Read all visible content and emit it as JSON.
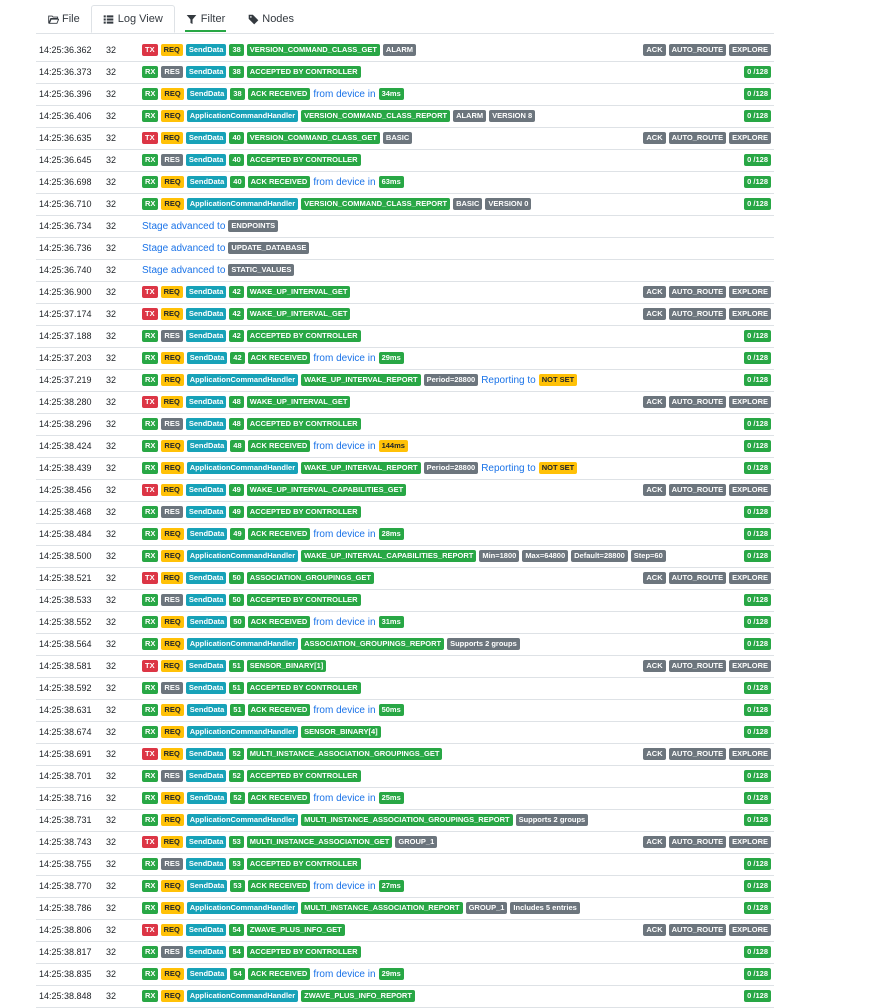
{
  "tabs": [
    {
      "label": "File",
      "icon": "folder-open-icon"
    },
    {
      "label": "Log View",
      "icon": "list-icon"
    },
    {
      "label": "Filter",
      "icon": "filter-icon"
    },
    {
      "label": "Nodes",
      "icon": "tags-icon"
    }
  ],
  "colors": {
    "tx": "#dc3545",
    "rx": "#28a745",
    "req": "#ffc107",
    "res": "#6c757d",
    "func": "#17a2b8",
    "cmd": "#28a745",
    "arg": "#6c757d",
    "link": "#1a73e8"
  },
  "log": [
    {
      "time": "14:25:36.362",
      "node": "32",
      "dir": "TX",
      "type": "REQ",
      "func": "SendData",
      "cb": "38",
      "cmd": "VERSION_COMMAND_CLASS_GET",
      "args": [
        "ALARM"
      ],
      "flags": [
        "ACK",
        "AUTO_ROUTE",
        "EXPLORE"
      ]
    },
    {
      "time": "14:25:36.373",
      "node": "32",
      "dir": "RX",
      "type": "RES",
      "func": "SendData",
      "cb": "38",
      "cmd": "ACCEPTED BY CONTROLLER",
      "count": "0 /128"
    },
    {
      "time": "14:25:36.396",
      "node": "32",
      "dir": "RX",
      "type": "REQ",
      "func": "SendData",
      "cb": "38",
      "cmd": "ACK RECEIVED",
      "from": "from device in",
      "ms": "34ms",
      "count": "0 /128"
    },
    {
      "time": "14:25:36.406",
      "node": "32",
      "dir": "RX",
      "type": "REQ",
      "func": "ApplicationCommandHandler",
      "cmd": "VERSION_COMMAND_CLASS_REPORT",
      "args": [
        "ALARM",
        "VERSION 8"
      ],
      "count": "0 /128"
    },
    {
      "time": "14:25:36.635",
      "node": "32",
      "dir": "TX",
      "type": "REQ",
      "func": "SendData",
      "cb": "40",
      "cmd": "VERSION_COMMAND_CLASS_GET",
      "args": [
        "BASIC"
      ],
      "flags": [
        "ACK",
        "AUTO_ROUTE",
        "EXPLORE"
      ]
    },
    {
      "time": "14:25:36.645",
      "node": "32",
      "dir": "RX",
      "type": "RES",
      "func": "SendData",
      "cb": "40",
      "cmd": "ACCEPTED BY CONTROLLER",
      "count": "0 /128"
    },
    {
      "time": "14:25:36.698",
      "node": "32",
      "dir": "RX",
      "type": "REQ",
      "func": "SendData",
      "cb": "40",
      "cmd": "ACK RECEIVED",
      "from": "from device in",
      "ms": "63ms",
      "count": "0 /128"
    },
    {
      "time": "14:25:36.710",
      "node": "32",
      "dir": "RX",
      "type": "REQ",
      "func": "ApplicationCommandHandler",
      "cmd": "VERSION_COMMAND_CLASS_REPORT",
      "args": [
        "BASIC",
        "VERSION 0"
      ],
      "count": "0 /128"
    },
    {
      "time": "14:25:36.734",
      "node": "32",
      "stage": "Stage advanced to",
      "stage_value": "ENDPOINTS"
    },
    {
      "time": "14:25:36.736",
      "node": "32",
      "stage": "Stage advanced to",
      "stage_value": "UPDATE_DATABASE"
    },
    {
      "time": "14:25:36.740",
      "node": "32",
      "stage": "Stage advanced to",
      "stage_value": "STATIC_VALUES"
    },
    {
      "time": "14:25:36.900",
      "node": "32",
      "dir": "TX",
      "type": "REQ",
      "func": "SendData",
      "cb": "42",
      "cmd": "WAKE_UP_INTERVAL_GET",
      "flags": [
        "ACK",
        "AUTO_ROUTE",
        "EXPLORE"
      ]
    },
    {
      "time": "14:25:37.174",
      "node": "32",
      "dir": "TX",
      "type": "REQ",
      "func": "SendData",
      "cb": "42",
      "cmd": "WAKE_UP_INTERVAL_GET",
      "flags": [
        "ACK",
        "AUTO_ROUTE",
        "EXPLORE"
      ]
    },
    {
      "time": "14:25:37.188",
      "node": "32",
      "dir": "RX",
      "type": "RES",
      "func": "SendData",
      "cb": "42",
      "cmd": "ACCEPTED BY CONTROLLER",
      "count": "0 /128"
    },
    {
      "time": "14:25:37.203",
      "node": "32",
      "dir": "RX",
      "type": "REQ",
      "func": "SendData",
      "cb": "42",
      "cmd": "ACK RECEIVED",
      "from": "from device in",
      "ms": "29ms",
      "count": "0 /128"
    },
    {
      "time": "14:25:37.219",
      "node": "32",
      "dir": "RX",
      "type": "REQ",
      "func": "ApplicationCommandHandler",
      "cmd": "WAKE_UP_INTERVAL_REPORT",
      "args": [
        "Period=28800"
      ],
      "reporting": "Reporting to",
      "notset": "NOT SET",
      "count": "0 /128"
    },
    {
      "time": "14:25:38.280",
      "node": "32",
      "dir": "TX",
      "type": "REQ",
      "func": "SendData",
      "cb": "48",
      "cmd": "WAKE_UP_INTERVAL_GET",
      "flags": [
        "ACK",
        "AUTO_ROUTE",
        "EXPLORE"
      ]
    },
    {
      "time": "14:25:38.296",
      "node": "32",
      "dir": "RX",
      "type": "RES",
      "func": "SendData",
      "cb": "48",
      "cmd": "ACCEPTED BY CONTROLLER",
      "count": "0 /128"
    },
    {
      "time": "14:25:38.424",
      "node": "32",
      "dir": "RX",
      "type": "REQ",
      "func": "SendData",
      "cb": "48",
      "cmd": "ACK RECEIVED",
      "from": "from device in",
      "ms": "144ms",
      "slow": true,
      "count": "0 /128"
    },
    {
      "time": "14:25:38.439",
      "node": "32",
      "dir": "RX",
      "type": "REQ",
      "func": "ApplicationCommandHandler",
      "cmd": "WAKE_UP_INTERVAL_REPORT",
      "args": [
        "Period=28800"
      ],
      "reporting": "Reporting to",
      "notset": "NOT SET",
      "count": "0 /128"
    },
    {
      "time": "14:25:38.456",
      "node": "32",
      "dir": "TX",
      "type": "REQ",
      "func": "SendData",
      "cb": "49",
      "cmd": "WAKE_UP_INTERVAL_CAPABILITIES_GET",
      "flags": [
        "ACK",
        "AUTO_ROUTE",
        "EXPLORE"
      ]
    },
    {
      "time": "14:25:38.468",
      "node": "32",
      "dir": "RX",
      "type": "RES",
      "func": "SendData",
      "cb": "49",
      "cmd": "ACCEPTED BY CONTROLLER",
      "count": "0 /128"
    },
    {
      "time": "14:25:38.484",
      "node": "32",
      "dir": "RX",
      "type": "REQ",
      "func": "SendData",
      "cb": "49",
      "cmd": "ACK RECEIVED",
      "from": "from device in",
      "ms": "28ms",
      "count": "0 /128"
    },
    {
      "time": "14:25:38.500",
      "node": "32",
      "dir": "RX",
      "type": "REQ",
      "func": "ApplicationCommandHandler",
      "cmd": "WAKE_UP_INTERVAL_CAPABILITIES_REPORT",
      "args": [
        "Min=1800",
        "Max=64800",
        "Default=28800",
        "Step=60"
      ],
      "count": "0 /128"
    },
    {
      "time": "14:25:38.521",
      "node": "32",
      "dir": "TX",
      "type": "REQ",
      "func": "SendData",
      "cb": "50",
      "cmd": "ASSOCIATION_GROUPINGS_GET",
      "flags": [
        "ACK",
        "AUTO_ROUTE",
        "EXPLORE"
      ]
    },
    {
      "time": "14:25:38.533",
      "node": "32",
      "dir": "RX",
      "type": "RES",
      "func": "SendData",
      "cb": "50",
      "cmd": "ACCEPTED BY CONTROLLER",
      "count": "0 /128"
    },
    {
      "time": "14:25:38.552",
      "node": "32",
      "dir": "RX",
      "type": "REQ",
      "func": "SendData",
      "cb": "50",
      "cmd": "ACK RECEIVED",
      "from": "from device in",
      "ms": "31ms",
      "count": "0 /128"
    },
    {
      "time": "14:25:38.564",
      "node": "32",
      "dir": "RX",
      "type": "REQ",
      "func": "ApplicationCommandHandler",
      "cmd": "ASSOCIATION_GROUPINGS_REPORT",
      "args": [
        "Supports 2 groups"
      ],
      "count": "0 /128"
    },
    {
      "time": "14:25:38.581",
      "node": "32",
      "dir": "TX",
      "type": "REQ",
      "func": "SendData",
      "cb": "51",
      "cmd": "SENSOR_BINARY[1]",
      "flags": [
        "ACK",
        "AUTO_ROUTE",
        "EXPLORE"
      ]
    },
    {
      "time": "14:25:38.592",
      "node": "32",
      "dir": "RX",
      "type": "RES",
      "func": "SendData",
      "cb": "51",
      "cmd": "ACCEPTED BY CONTROLLER",
      "count": "0 /128"
    },
    {
      "time": "14:25:38.631",
      "node": "32",
      "dir": "RX",
      "type": "REQ",
      "func": "SendData",
      "cb": "51",
      "cmd": "ACK RECEIVED",
      "from": "from device in",
      "ms": "50ms",
      "count": "0 /128"
    },
    {
      "time": "14:25:38.674",
      "node": "32",
      "dir": "RX",
      "type": "REQ",
      "func": "ApplicationCommandHandler",
      "cmd": "SENSOR_BINARY[4]",
      "count": "0 /128"
    },
    {
      "time": "14:25:38.691",
      "node": "32",
      "dir": "TX",
      "type": "REQ",
      "func": "SendData",
      "cb": "52",
      "cmd": "MULTI_INSTANCE_ASSOCIATION_GROUPINGS_GET",
      "flags": [
        "ACK",
        "AUTO_ROUTE",
        "EXPLORE"
      ]
    },
    {
      "time": "14:25:38.701",
      "node": "32",
      "dir": "RX",
      "type": "RES",
      "func": "SendData",
      "cb": "52",
      "cmd": "ACCEPTED BY CONTROLLER",
      "count": "0 /128"
    },
    {
      "time": "14:25:38.716",
      "node": "32",
      "dir": "RX",
      "type": "REQ",
      "func": "SendData",
      "cb": "52",
      "cmd": "ACK RECEIVED",
      "from": "from device in",
      "ms": "25ms",
      "count": "0 /128"
    },
    {
      "time": "14:25:38.731",
      "node": "32",
      "dir": "RX",
      "type": "REQ",
      "func": "ApplicationCommandHandler",
      "cmd": "MULTI_INSTANCE_ASSOCIATION_GROUPINGS_REPORT",
      "args": [
        "Supports 2 groups"
      ],
      "count": "0 /128"
    },
    {
      "time": "14:25:38.743",
      "node": "32",
      "dir": "TX",
      "type": "REQ",
      "func": "SendData",
      "cb": "53",
      "cmd": "MULTI_INSTANCE_ASSOCIATION_GET",
      "args": [
        "GROUP_1"
      ],
      "flags": [
        "ACK",
        "AUTO_ROUTE",
        "EXPLORE"
      ]
    },
    {
      "time": "14:25:38.755",
      "node": "32",
      "dir": "RX",
      "type": "RES",
      "func": "SendData",
      "cb": "53",
      "cmd": "ACCEPTED BY CONTROLLER",
      "count": "0 /128"
    },
    {
      "time": "14:25:38.770",
      "node": "32",
      "dir": "RX",
      "type": "REQ",
      "func": "SendData",
      "cb": "53",
      "cmd": "ACK RECEIVED",
      "from": "from device in",
      "ms": "27ms",
      "count": "0 /128"
    },
    {
      "time": "14:25:38.786",
      "node": "32",
      "dir": "RX",
      "type": "REQ",
      "func": "ApplicationCommandHandler",
      "cmd": "MULTI_INSTANCE_ASSOCIATION_REPORT",
      "args": [
        "GROUP_1",
        "Includes 5 entries"
      ],
      "count": "0 /128"
    },
    {
      "time": "14:25:38.806",
      "node": "32",
      "dir": "TX",
      "type": "REQ",
      "func": "SendData",
      "cb": "54",
      "cmd": "ZWAVE_PLUS_INFO_GET",
      "flags": [
        "ACK",
        "AUTO_ROUTE",
        "EXPLORE"
      ]
    },
    {
      "time": "14:25:38.817",
      "node": "32",
      "dir": "RX",
      "type": "RES",
      "func": "SendData",
      "cb": "54",
      "cmd": "ACCEPTED BY CONTROLLER",
      "count": "0 /128"
    },
    {
      "time": "14:25:38.835",
      "node": "32",
      "dir": "RX",
      "type": "REQ",
      "func": "SendData",
      "cb": "54",
      "cmd": "ACK RECEIVED",
      "from": "from device in",
      "ms": "29ms",
      "count": "0 /128"
    },
    {
      "time": "14:25:38.848",
      "node": "32",
      "dir": "RX",
      "type": "REQ",
      "func": "ApplicationCommandHandler",
      "cmd": "ZWAVE_PLUS_INFO_REPORT",
      "count": "0 /128"
    }
  ]
}
